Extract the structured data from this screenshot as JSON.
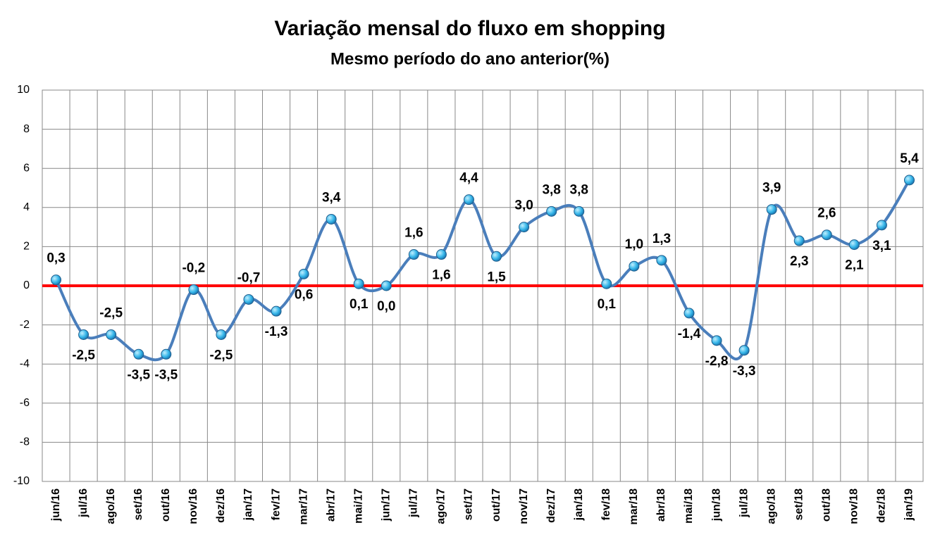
{
  "chart_data": {
    "type": "line",
    "title": "Variação mensal do fluxo em shopping",
    "subtitle": "Mesmo período do ano anterior(%)",
    "categories": [
      "jun/16",
      "jul/16",
      "ago/16",
      "set/16",
      "out/16",
      "nov/16",
      "dez/16",
      "jan/17",
      "fev/17",
      "mar/17",
      "abr/17",
      "mai/17",
      "jun/17",
      "jul/17",
      "ago/17",
      "set/17",
      "out/17",
      "nov/17",
      "dez/17",
      "jan/18",
      "fev/18",
      "mar/18",
      "abr/18",
      "mai/18",
      "jun/18",
      "jul/18",
      "ago/18",
      "set/18",
      "out/18",
      "nov/18",
      "dez/18",
      "jan/19"
    ],
    "values": [
      0.3,
      -2.5,
      -2.5,
      -3.5,
      -3.5,
      -0.2,
      -2.5,
      -0.7,
      -1.3,
      0.6,
      3.4,
      0.1,
      0.0,
      1.6,
      1.6,
      4.4,
      1.5,
      3.0,
      3.8,
      3.8,
      0.1,
      1.0,
      1.3,
      -1.4,
      -2.8,
      -3.3,
      3.9,
      2.3,
      2.6,
      2.1,
      3.1,
      5.4
    ],
    "value_labels": [
      "0,3",
      "-2,5",
      "-2,5",
      "-3,5",
      "-3,5",
      "-0,2",
      "-2,5",
      "-0,7",
      "-1,3",
      "0,6",
      "3,4",
      "0,1",
      "0,0",
      "1,6",
      "1,6",
      "4,4",
      "1,5",
      "3,0",
      "3,8",
      "3,8",
      "0,1",
      "1,0",
      "1,3",
      "-1,4",
      "-2,8",
      "-3,3",
      "3,9",
      "2,3",
      "2,6",
      "2,1",
      "3,1",
      "5,4"
    ],
    "color": "#4a7ebb",
    "marker_color": "#33b4e8",
    "zero_line_color": "#ff0000",
    "ylim": [
      -10,
      10
    ],
    "yticks": [
      -10,
      -8,
      -6,
      -4,
      -2,
      0,
      2,
      4,
      6,
      8,
      10
    ],
    "grid": true
  }
}
